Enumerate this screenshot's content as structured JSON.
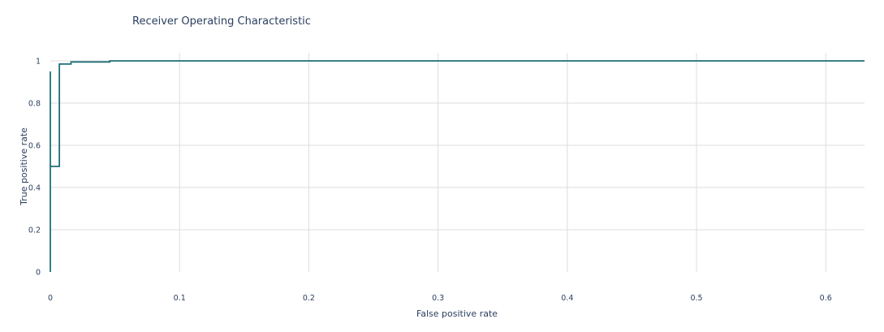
{
  "chart_data": {
    "type": "line",
    "title": "Receiver Operating Characteristic",
    "xlabel": "False positive rate",
    "ylabel": "True positive rate",
    "xlim": [
      0,
      0.63
    ],
    "ylim": [
      0,
      1
    ],
    "x_ticks": [
      0,
      0.1,
      0.2,
      0.3,
      0.4,
      0.5,
      0.6
    ],
    "x_tick_labels": [
      "0",
      "0.1",
      "0.2",
      "0.3",
      "0.4",
      "0.5",
      "0.6"
    ],
    "y_ticks": [
      0,
      0.2,
      0.4,
      0.6,
      0.8,
      1
    ],
    "y_tick_labels": [
      "0",
      "0.2",
      "0.4",
      "0.6",
      "0.8",
      "1"
    ],
    "grid": true,
    "legend": "none",
    "colors": {
      "series": "#1f6f78",
      "grid": "#dddddd",
      "text": "#2a3f5f"
    },
    "series": [
      {
        "x": [
          0,
          0,
          0,
          0.007,
          0.007,
          0.016,
          0.016,
          0.046,
          0.046,
          0.63
        ],
        "y": [
          0,
          0.95,
          0.5,
          0.5,
          0.985,
          0.985,
          0.995,
          0.995,
          1,
          1
        ]
      }
    ]
  }
}
